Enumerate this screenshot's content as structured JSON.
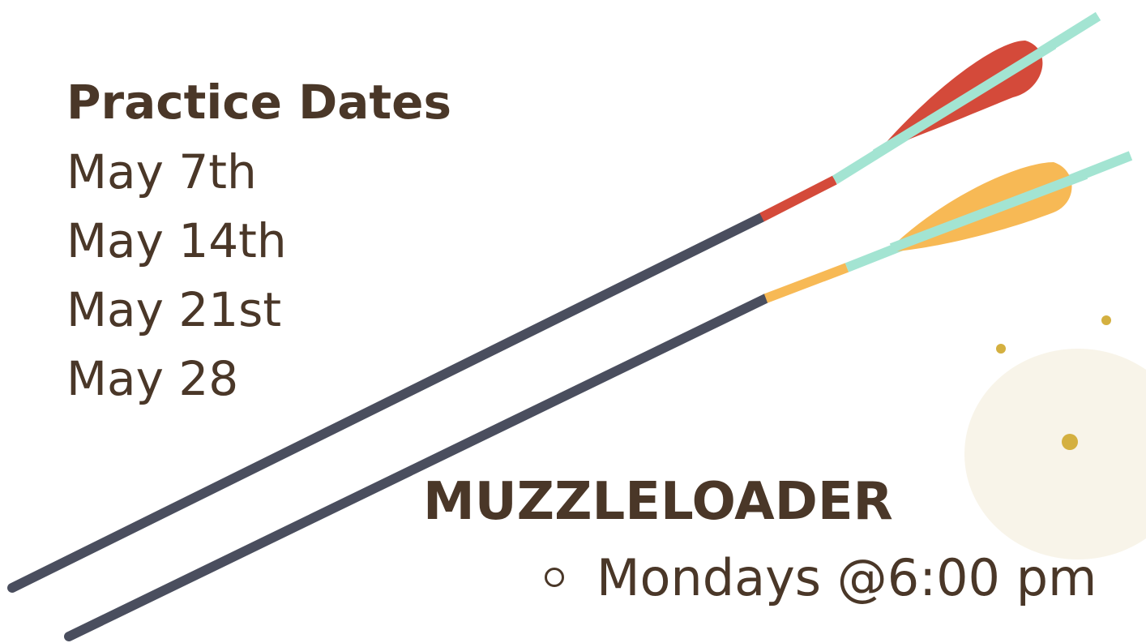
{
  "practice": {
    "title": "Practice Dates",
    "dates": [
      "May 7th",
      "May 14th",
      "May 21st",
      "May 28"
    ]
  },
  "event": {
    "title": "MUZZLELOADER",
    "items": [
      "Mondays @6:00 pm"
    ]
  }
}
